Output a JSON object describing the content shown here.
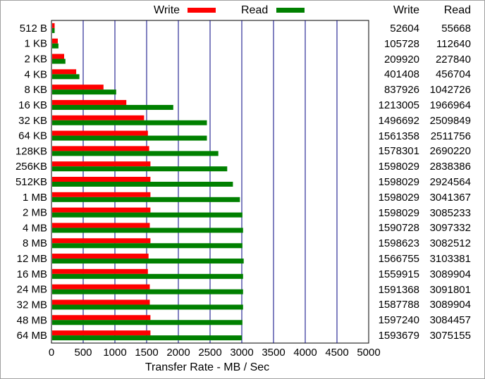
{
  "chart_data": {
    "type": "bar",
    "orientation": "horizontal",
    "categories": [
      "512 B",
      "1 KB",
      "2 KB",
      "4 KB",
      "8 KB",
      "16 KB",
      "32 KB",
      "64 KB",
      "128KB",
      "256KB",
      "512KB",
      "1 MB",
      "2 MB",
      "4 MB",
      "8 MB",
      "12 MB",
      "16 MB",
      "24 MB",
      "32 MB",
      "48 MB",
      "64 MB"
    ],
    "series": [
      {
        "name": "Write",
        "color": "#ff0000",
        "values": [
          50,
          100,
          200,
          390,
          820,
          1180,
          1460,
          1520,
          1540,
          1560,
          1560,
          1560,
          1560,
          1550,
          1560,
          1530,
          1520,
          1550,
          1550,
          1560,
          1560
        ]
      },
      {
        "name": "Read",
        "color": "#008000",
        "values": [
          50,
          110,
          220,
          440,
          1020,
          1920,
          2450,
          2450,
          2630,
          2770,
          2860,
          2970,
          3010,
          3020,
          3010,
          3030,
          3020,
          3020,
          3020,
          3010,
          3000
        ]
      }
    ],
    "xlabel": "Transfer Rate - MB / Sec",
    "xlim": [
      0,
      5000
    ],
    "xticks": [
      0,
      500,
      1000,
      1500,
      2000,
      2500,
      3000,
      3500,
      4000,
      4500,
      5000
    ],
    "grid": true,
    "legend": "top"
  },
  "legend": {
    "write_label": "Write",
    "read_label": "Read"
  },
  "table": {
    "write_header": "Write",
    "read_header": "Read",
    "rows": [
      {
        "write": "52604",
        "read": "55668"
      },
      {
        "write": "105728",
        "read": "112640"
      },
      {
        "write": "209920",
        "read": "227840"
      },
      {
        "write": "401408",
        "read": "456704"
      },
      {
        "write": "837926",
        "read": "1042726"
      },
      {
        "write": "1213005",
        "read": "1966964"
      },
      {
        "write": "1496692",
        "read": "2509849"
      },
      {
        "write": "1561358",
        "read": "2511756"
      },
      {
        "write": "1578301",
        "read": "2690220"
      },
      {
        "write": "1598029",
        "read": "2838386"
      },
      {
        "write": "1598029",
        "read": "2924564"
      },
      {
        "write": "1598029",
        "read": "3041367"
      },
      {
        "write": "1598029",
        "read": "3085233"
      },
      {
        "write": "1590728",
        "read": "3097332"
      },
      {
        "write": "1598623",
        "read": "3082512"
      },
      {
        "write": "1566755",
        "read": "3103381"
      },
      {
        "write": "1559915",
        "read": "3089904"
      },
      {
        "write": "1591368",
        "read": "3091801"
      },
      {
        "write": "1587788",
        "read": "3089904"
      },
      {
        "write": "1597240",
        "read": "3084457"
      },
      {
        "write": "1593679",
        "read": "3075155"
      }
    ]
  }
}
